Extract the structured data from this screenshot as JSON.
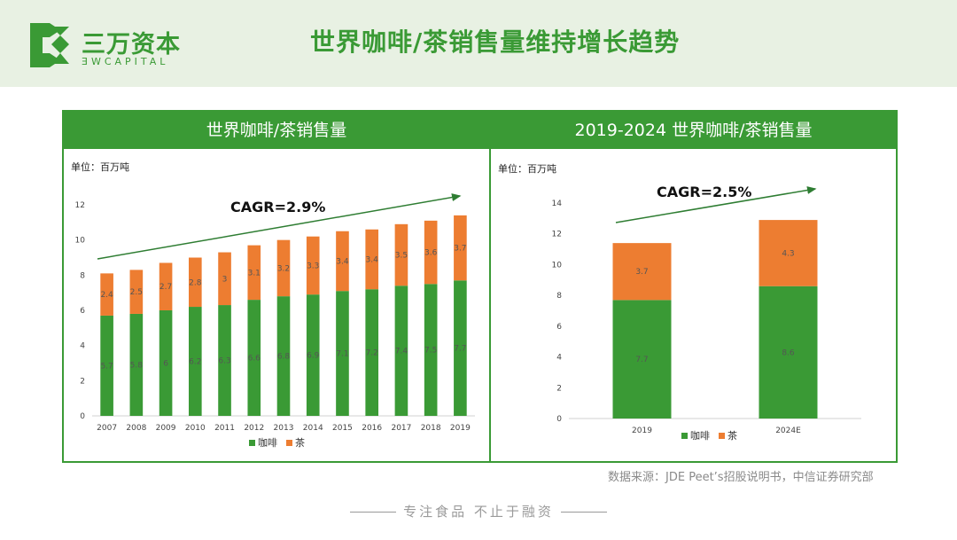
{
  "brand": {
    "name_cn": "三万资本",
    "name_en": "ƎWCAPITAL",
    "color": "#3a9a35"
  },
  "page_title": "世界咖啡/茶销售量维持增长趋势",
  "source_note": "数据来源：JDE Peet’s招股说明书，中信证券研究部",
  "footer": {
    "text": "专注食品  不止于融资"
  },
  "colors": {
    "coffee": "#3a9a35",
    "tea": "#ed7d31",
    "arrow": "#2e7d32"
  },
  "chart_data": [
    {
      "type": "bar",
      "stacked": true,
      "title": "世界咖啡/茶销售量",
      "unit_label": "单位：百万吨",
      "annotation": "CAGR=2.9%",
      "categories": [
        "2007",
        "2008",
        "2009",
        "2010",
        "2011",
        "2012",
        "2013",
        "2014",
        "2015",
        "2016",
        "2017",
        "2018",
        "2019"
      ],
      "series": [
        {
          "name": "咖啡",
          "values": [
            5.7,
            5.8,
            6,
            6.2,
            6.3,
            6.6,
            6.8,
            6.9,
            7.1,
            7.2,
            7.4,
            7.5,
            7.7
          ]
        },
        {
          "name": "茶",
          "values": [
            2.4,
            2.5,
            2.7,
            2.8,
            3,
            3.1,
            3.2,
            3.3,
            3.4,
            3.4,
            3.5,
            3.6,
            3.7
          ]
        }
      ],
      "ylim": [
        0,
        12
      ],
      "yticks": [
        0,
        2,
        4,
        6,
        8,
        10,
        12
      ],
      "legend": "bottom"
    },
    {
      "type": "bar",
      "stacked": true,
      "title": "2019-2024 世界咖啡/茶销售量",
      "unit_label": "单位：百万吨",
      "annotation": "CAGR=2.5%",
      "categories": [
        "2019",
        "2024E"
      ],
      "series": [
        {
          "name": "咖啡",
          "values": [
            7.7,
            8.6
          ]
        },
        {
          "name": "茶",
          "values": [
            3.7,
            4.3
          ]
        }
      ],
      "ylim": [
        0,
        14
      ],
      "yticks": [
        0,
        2,
        4,
        6,
        8,
        10,
        12,
        14
      ],
      "legend": "bottom"
    }
  ]
}
